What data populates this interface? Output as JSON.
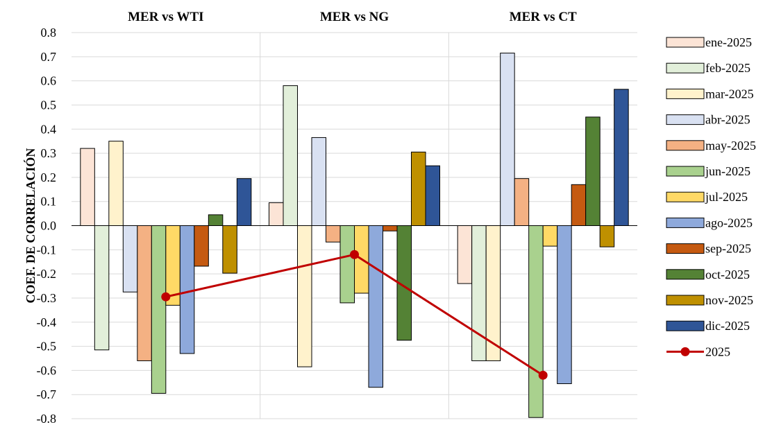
{
  "chart_data": {
    "type": "bar",
    "categories": [
      "MER vs WTI",
      "MER vs NG",
      "MER vs CT"
    ],
    "ylabel": "COEF. DE CORRELACIÓN",
    "xlabel": "",
    "ylim": [
      -0.8,
      0.8
    ],
    "ytick_step": 0.1,
    "yticks": [
      "0.8",
      "0.7",
      "0.6",
      "0.5",
      "0.4",
      "0.3",
      "0.2",
      "0.1",
      "0.0",
      "-0.1",
      "-0.2",
      "-0.3",
      "-0.4",
      "-0.5",
      "-0.6",
      "-0.7",
      "-0.8"
    ],
    "grid": true,
    "legend_position": "right",
    "series": [
      {
        "name": "ene-2025",
        "color": "#FCE4D6",
        "values": [
          0.32,
          0.095,
          -0.24
        ]
      },
      {
        "name": "feb-2025",
        "color": "#E2EFDA",
        "values": [
          -0.515,
          0.58,
          -0.56
        ]
      },
      {
        "name": "mar-2025",
        "color": "#FFF2CC",
        "values": [
          0.35,
          -0.585,
          -0.56
        ]
      },
      {
        "name": "abr-2025",
        "color": "#D9E1F2",
        "values": [
          -0.275,
          0.365,
          0.715
        ]
      },
      {
        "name": "may-2025",
        "color": "#F4B183",
        "values": [
          -0.56,
          -0.068,
          0.195
        ]
      },
      {
        "name": "jun-2025",
        "color": "#A9D18E",
        "values": [
          -0.695,
          -0.32,
          -0.795
        ]
      },
      {
        "name": "jul-2025",
        "color": "#FFD966",
        "values": [
          -0.33,
          -0.28,
          -0.085
        ]
      },
      {
        "name": "ago-2025",
        "color": "#8EA9DB",
        "values": [
          -0.53,
          -0.67,
          -0.655
        ]
      },
      {
        "name": "sep-2025",
        "color": "#C55A11",
        "values": [
          -0.168,
          -0.022,
          0.17
        ]
      },
      {
        "name": "oct-2025",
        "color": "#548235",
        "values": [
          0.045,
          -0.475,
          0.45
        ]
      },
      {
        "name": "nov-2025",
        "color": "#BF9000",
        "values": [
          -0.197,
          0.305,
          -0.088
        ]
      },
      {
        "name": "dic-2025",
        "color": "#2F5597",
        "values": [
          0.195,
          0.248,
          0.565
        ]
      }
    ],
    "line_series": {
      "name": "2025",
      "color": "#C00000",
      "values": [
        -0.295,
        -0.12,
        -0.62
      ]
    }
  }
}
